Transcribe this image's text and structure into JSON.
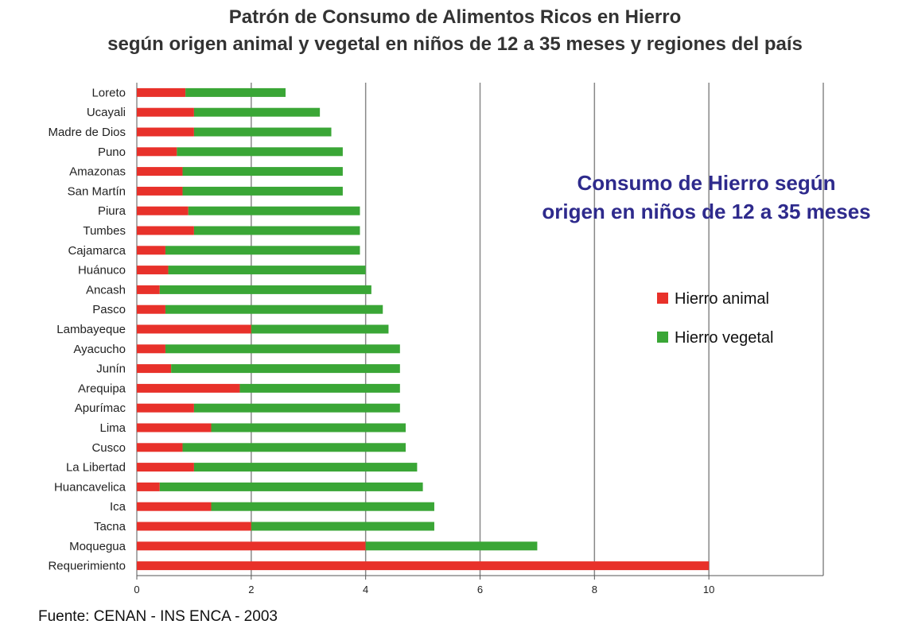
{
  "title_line1": "Patrón de Consumo de Alimentos Ricos en Hierro",
  "title_line2": "según origen animal y vegetal en niños de 12 a 35 meses y regiones del país",
  "annotation_line1": "Consumo de Hierro según",
  "annotation_line2": "origen en niños de 12 a 35 meses",
  "source": "Fuente: CENAN - INS ENCA - 2003",
  "colors": {
    "animal": "#e8312a",
    "vegetal": "#3aa636",
    "grid": "#888888",
    "annotation": "#2e2a8c"
  },
  "chart_data": {
    "type": "bar",
    "orientation": "horizontal",
    "stacked": true,
    "title": "Patrón de Consumo de Alimentos Ricos en Hierro según origen animal y vegetal en niños de 12 a 35 meses y regiones del país",
    "categories": [
      "Loreto",
      "Ucayali",
      "Madre de Dios",
      "Puno",
      "Amazonas",
      "San Martín",
      "Piura",
      "Tumbes",
      "Cajamarca",
      "Huánuco",
      "Ancash",
      "Pasco",
      "Lambayeque",
      "Ayacucho",
      "Junín",
      "Arequipa",
      "Apurímac",
      "Lima",
      "Cusco",
      "La Libertad",
      "Huancavelica",
      "Ica",
      "Tacna",
      "Moquegua",
      "Requerimiento"
    ],
    "series": [
      {
        "name": "Hierro animal",
        "color": "#e8312a",
        "values": [
          0.85,
          1.0,
          1.0,
          0.7,
          0.8,
          0.8,
          0.9,
          1.0,
          0.5,
          0.55,
          0.4,
          0.5,
          2.0,
          0.5,
          0.6,
          1.8,
          1.0,
          1.3,
          0.8,
          1.0,
          0.4,
          1.3,
          2.0,
          4.0,
          10.0
        ]
      },
      {
        "name": "Hierro vegetal",
        "color": "#3aa636",
        "values": [
          1.75,
          2.2,
          2.4,
          2.9,
          2.8,
          2.8,
          3.0,
          2.9,
          3.4,
          3.45,
          3.7,
          3.8,
          2.4,
          4.1,
          4.0,
          2.8,
          3.6,
          3.4,
          3.9,
          3.9,
          4.6,
          3.9,
          3.2,
          3.0,
          0
        ]
      }
    ],
    "x_ticks": [
      0,
      2,
      4,
      6,
      8,
      10
    ],
    "xlim": [
      0,
      12
    ],
    "grid": true,
    "legend_position": "right"
  }
}
